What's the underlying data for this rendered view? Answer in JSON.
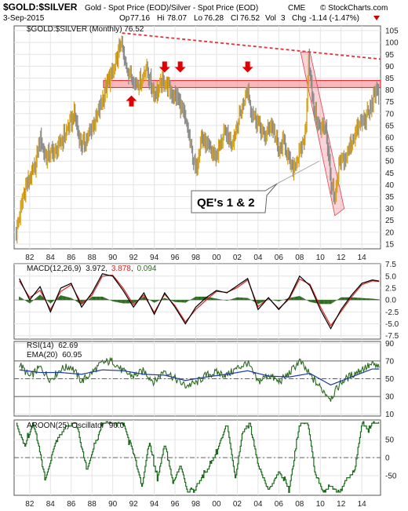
{
  "header": {
    "symbol": "$GOLD:$SILVER",
    "description": "Gold - Spot Price (EOD)/Silver - Spot Price (EOD)",
    "exchange": "CME",
    "brand": "© StockCharts.com",
    "date": "3-Sep-2015",
    "ohlc": {
      "open_label": "Op",
      "open": "77.16",
      "high_label": "Hi",
      "high": "78.07",
      "low_label": "Lo",
      "low": "76.28",
      "close_label": "Cl",
      "close": "76.52",
      "volume_label": "Vol",
      "volume": "3",
      "change_label": "Chg",
      "change": "-1.14 (-1.47%)"
    },
    "colors": {
      "change": "#cc0000"
    }
  },
  "annotation": {
    "text": "QE's 1 & 2"
  },
  "chart_data": [
    {
      "type": "bar",
      "panel": "price",
      "legend": "$GOLD:$SILVER (Monthly) 76.52",
      "yticks": [
        15,
        20,
        25,
        30,
        35,
        40,
        45,
        50,
        55,
        60,
        65,
        70,
        75,
        80,
        85,
        90,
        95,
        100,
        105
      ],
      "ylim": [
        13,
        107
      ],
      "x_ticks": [
        "82",
        "84",
        "86",
        "88",
        "90",
        "92",
        "94",
        "96",
        "98",
        "00",
        "02",
        "04",
        "06",
        "08",
        "10",
        "12",
        "14"
      ],
      "x_range": [
        1980.5,
        2015.8
      ],
      "colors": {
        "up": "#d9a21b",
        "down": "#8c8c8c",
        "resistance": "#e8303a",
        "zone": "#f08080"
      },
      "series": [
        {
          "name": "",
          "x": [
            1980.7,
            1981.5,
            1982.5,
            1983.0,
            1983.5,
            1984.5,
            1985.5,
            1986.3,
            1987.0,
            1987.8,
            1988.5,
            1989.5,
            1990.3,
            1990.8,
            1991.1,
            1991.5,
            1992.2,
            1992.8,
            1993.2,
            1994.0,
            1995.0,
            1995.5,
            1996.3,
            1996.8,
            1997.3,
            1998.0,
            1998.5,
            1999.3,
            2000.0,
            2000.8,
            2001.5,
            2002.3,
            2003.0,
            2003.3,
            2004.0,
            2004.6,
            2005.3,
            2006.0,
            2006.5,
            2007.3,
            2008.0,
            2008.6,
            2008.85,
            2009.3,
            2010.0,
            2010.5,
            2011.0,
            2011.4,
            2011.8,
            2012.5,
            2013.0,
            2013.6,
            2014.3,
            2014.9,
            2015.2,
            2015.67
          ],
          "y": [
            20,
            38,
            47,
            60,
            52,
            54,
            62,
            70,
            56,
            62,
            69,
            83,
            90,
            101,
            92,
            88,
            83,
            84,
            90,
            78,
            84,
            80,
            76,
            70,
            61,
            46,
            60,
            55,
            52,
            62,
            58,
            70,
            81,
            72,
            66,
            60,
            66,
            54,
            58,
            46,
            53,
            62,
            95,
            73,
            63,
            66,
            42,
            32,
            48,
            52,
            58,
            64,
            68,
            72,
            80,
            76.5
          ]
        }
      ],
      "resistance_zone": [
        81,
        84
      ],
      "trendline": {
        "start": [
          1990.9,
          104
        ],
        "end": [
          2015.8,
          93
        ]
      },
      "markers": [
        {
          "x": 1991.8,
          "y": 77,
          "dir": "up"
        },
        {
          "x": 1995.0,
          "y": 88,
          "dir": "down"
        },
        {
          "x": 1996.5,
          "y": 88,
          "dir": "down"
        },
        {
          "x": 2003.0,
          "y": 88,
          "dir": "down"
        }
      ]
    },
    {
      "type": "line",
      "panel": "macd",
      "legend_name": "MACD(12,26,9)",
      "legend_values": [
        "3.972",
        "3.878",
        "0.094"
      ],
      "yticks": [
        -7.5,
        -5.0,
        -2.5,
        0.0,
        2.5,
        5.0,
        7.5
      ],
      "ylim": [
        -8.2,
        7.6
      ],
      "colors": {
        "macd": "#000000",
        "signal": "#dd2222",
        "histogram": "#2d6b1f"
      },
      "series": [
        {
          "name": "MACD",
          "x": [
            1981,
            1982,
            1983,
            1984,
            1985,
            1986,
            1987,
            1988,
            1989,
            1990,
            1991,
            1992,
            1993,
            1994,
            1995,
            1996,
            1997,
            1998,
            1999,
            2000,
            2001,
            2002,
            2003,
            2004,
            2005,
            2006,
            2007,
            2008,
            2009,
            2010,
            2011,
            2012,
            2013,
            2014,
            2015,
            2015.67
          ],
          "y": [
            4.5,
            0,
            2.8,
            -2.5,
            2.5,
            3.5,
            -1.5,
            1.5,
            5.5,
            5,
            2,
            -1.5,
            1.5,
            -3,
            1.5,
            -1.5,
            -5,
            -1.5,
            0.5,
            2,
            1.5,
            3,
            4.5,
            -2,
            0.5,
            -2,
            0.5,
            5,
            3,
            -2,
            -6,
            -2,
            1,
            3.5,
            4.2,
            3.97
          ]
        },
        {
          "name": "Signal",
          "x": [
            1981,
            1982,
            1983,
            1984,
            1985,
            1986,
            1987,
            1988,
            1989,
            1990,
            1991,
            1992,
            1993,
            1994,
            1995,
            1996,
            1997,
            1998,
            1999,
            2000,
            2001,
            2002,
            2003,
            2004,
            2005,
            2006,
            2007,
            2008,
            2009,
            2010,
            2011,
            2012,
            2013,
            2014,
            2015,
            2015.67
          ],
          "y": [
            4,
            0.5,
            2,
            -2,
            1.8,
            3.2,
            -0.8,
            1,
            5,
            5.2,
            2.5,
            -1,
            1,
            -2.6,
            1.2,
            -1.2,
            -4.6,
            -2,
            0,
            1.8,
            1.6,
            2.6,
            4.2,
            -1.4,
            0.4,
            -1.8,
            0.2,
            4.4,
            3.3,
            -1.4,
            -5.4,
            -2.4,
            0.6,
            3.2,
            4,
            3.88
          ]
        }
      ]
    },
    {
      "type": "line",
      "panel": "rsi",
      "legend_name": "RSI(14)",
      "legend_value": "62.69",
      "ema_name": "EMA(20)",
      "ema_value": "60.95",
      "yticks": [
        10,
        30,
        50,
        70,
        90
      ],
      "ylim": [
        8,
        92
      ],
      "colors": {
        "rsi": "#2d6b1f",
        "ema": "#1a3aa8"
      },
      "series": [
        {
          "name": "RSI",
          "x": [
            1981,
            1982,
            1983,
            1984,
            1985,
            1986,
            1987,
            1988,
            1989,
            1990,
            1991,
            1992,
            1993,
            1994,
            1995,
            1996,
            1997,
            1998,
            1999,
            2000,
            2001,
            2002,
            2003,
            2004,
            2005,
            2006,
            2007,
            2008,
            2009,
            2010,
            2011,
            2012,
            2013,
            2014,
            2015,
            2015.67
          ],
          "y": [
            67,
            52,
            63,
            49,
            61,
            64,
            47,
            57,
            68,
            70,
            58,
            53,
            59,
            46,
            60,
            50,
            42,
            45,
            54,
            57,
            54,
            62,
            68,
            46,
            55,
            46,
            56,
            70,
            54,
            40,
            28,
            46,
            54,
            61,
            66,
            62.69
          ]
        },
        {
          "name": "EMA",
          "x": [
            1981,
            1983,
            1985,
            1987,
            1989,
            1991,
            1993,
            1995,
            1997,
            1999,
            2001,
            2003,
            2005,
            2007,
            2009,
            2011,
            2013,
            2015,
            2015.67
          ],
          "y": [
            60,
            57,
            57,
            55,
            60,
            59,
            55,
            54,
            48,
            52,
            55,
            59,
            53,
            52,
            56,
            43,
            52,
            61,
            60.95
          ]
        }
      ]
    },
    {
      "type": "line",
      "panel": "aroon",
      "legend_name": "AROON(25) Oscillator",
      "legend_value": "96.0",
      "yticks": [
        -50,
        0,
        50
      ],
      "ylim": [
        -105,
        105
      ],
      "colors": {
        "line": "#1a6b1a"
      },
      "series": [
        {
          "name": "Oscillator",
          "x": [
            1980.7,
            1981.5,
            1982.3,
            1983.0,
            1983.5,
            1984.5,
            1985.5,
            1986.5,
            1987.5,
            1988.3,
            1989.0,
            1990.0,
            1991.0,
            1992.0,
            1992.8,
            1993.5,
            1994.3,
            1995.0,
            1995.8,
            1996.5,
            1997.2,
            1998.0,
            1999.0,
            2000.0,
            2001.0,
            2001.8,
            2002.5,
            2003.2,
            2004.0,
            2005.0,
            2006.0,
            2007.0,
            2008.0,
            2008.8,
            2009.5,
            2010.3,
            2011.0,
            2011.8,
            2012.5,
            2013.3,
            2014.0,
            2014.5,
            2015.0,
            2015.67
          ],
          "y": [
            96,
            28,
            96,
            12,
            -60,
            44,
            88,
            96,
            -36,
            40,
            96,
            96,
            96,
            12,
            -80,
            44,
            -60,
            40,
            -72,
            -20,
            -96,
            -80,
            -40,
            16,
            96,
            -60,
            72,
            96,
            -20,
            -92,
            -40,
            -88,
            96,
            96,
            -48,
            -96,
            -80,
            -100,
            -60,
            -40,
            96,
            80,
            96,
            96
          ]
        }
      ]
    }
  ]
}
